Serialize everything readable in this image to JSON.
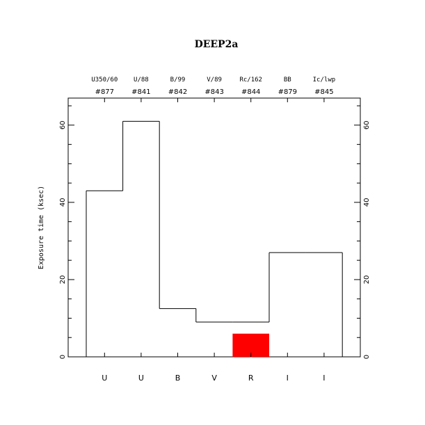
{
  "chart_data": {
    "type": "bar",
    "title": "DEEP2a",
    "ylabel": "Exposure time (ksec)",
    "xlabel": "",
    "ylim": [
      0,
      67
    ],
    "yticks": [
      0,
      20,
      40,
      60
    ],
    "categories": [
      "U",
      "U",
      "B",
      "V",
      "R",
      "I",
      "I"
    ],
    "filters": [
      "U350/60",
      "U/88",
      "B/99",
      "V/89",
      "Rc/162",
      "BB",
      "Ic/lwp"
    ],
    "filter_ids": [
      "#877",
      "#841",
      "#842",
      "#843",
      "#844",
      "#879",
      "#845"
    ],
    "series": [
      {
        "values": [
          43,
          61,
          12.5,
          9,
          9,
          27,
          27
        ],
        "style": "outline",
        "color": "#000000"
      },
      {
        "values": [
          0,
          0,
          0,
          0,
          6,
          0,
          0
        ],
        "style": "filled",
        "color": "#ff0000"
      }
    ],
    "grid": false,
    "legend": "none"
  }
}
